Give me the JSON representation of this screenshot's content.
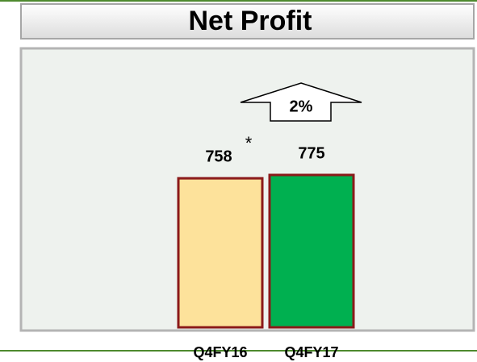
{
  "chart_data": {
    "type": "bar",
    "title": "Net Profit",
    "categories": [
      "Q4FY16",
      "Q4FY17"
    ],
    "values": [
      758,
      775
    ],
    "colors": [
      "#fde29b",
      "#00b050"
    ],
    "edge_color": "#8b1a1a",
    "annotation": "2%",
    "footnote_marker": "*"
  }
}
